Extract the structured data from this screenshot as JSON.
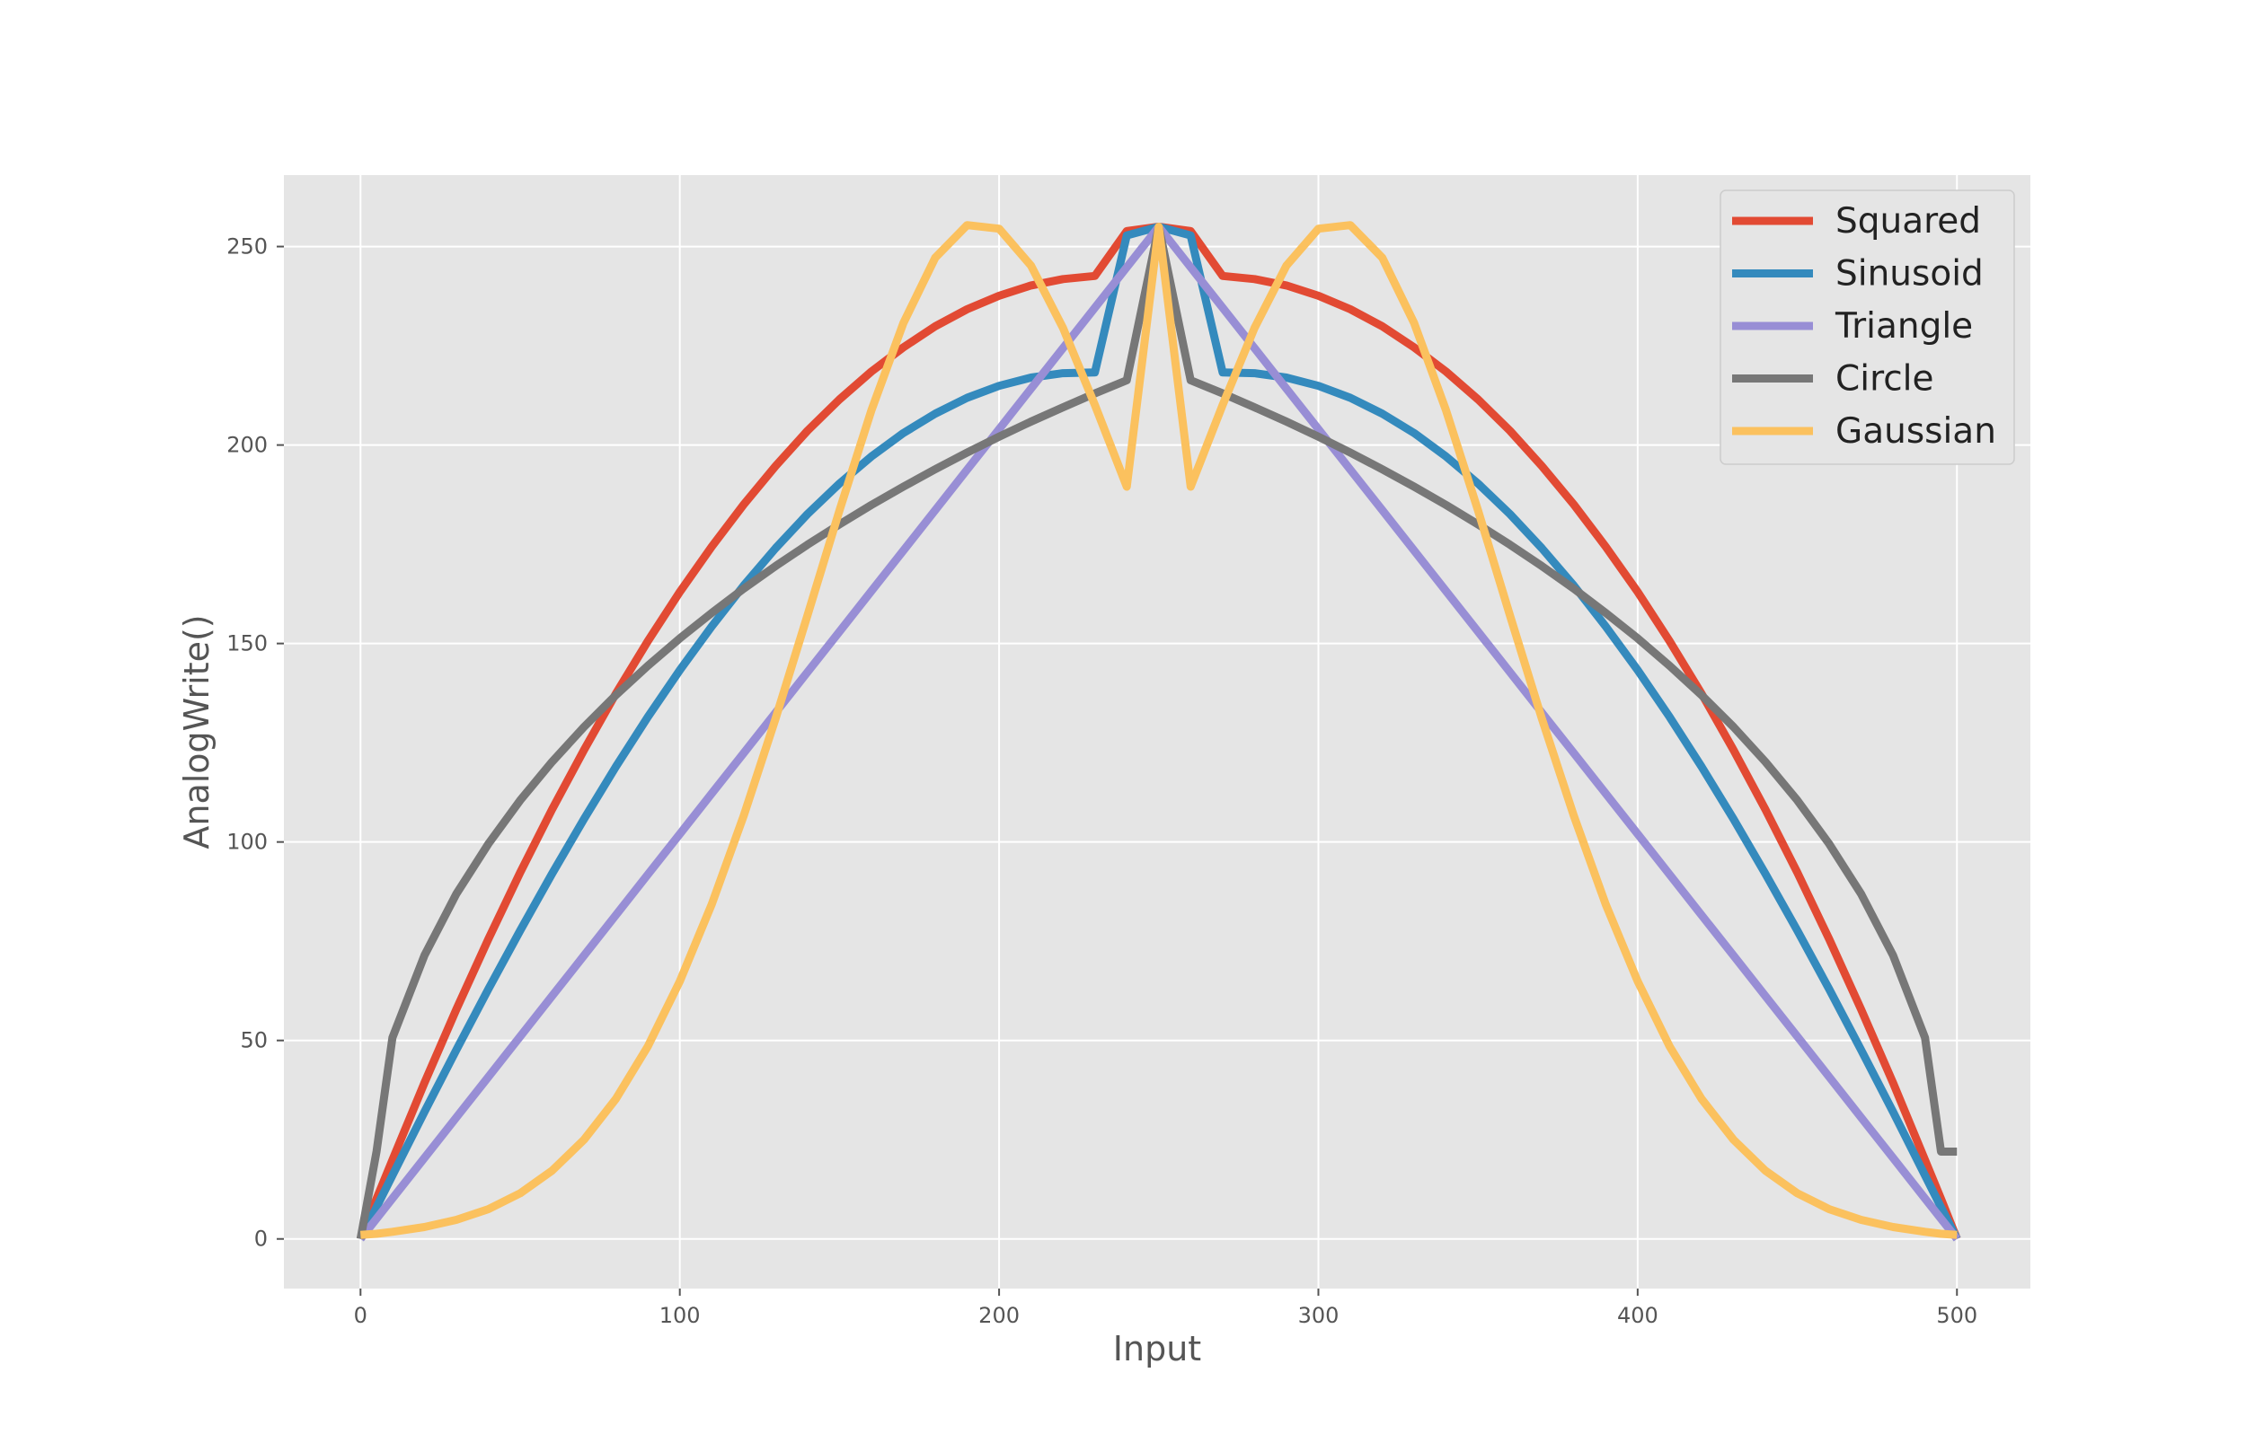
{
  "chart_data": {
    "type": "line",
    "title": "",
    "xlabel": "Input",
    "ylabel": "AnalogWrite()",
    "xlim": [
      -24,
      523
    ],
    "ylim": [
      -12.5,
      268
    ],
    "x_ticks": [
      0,
      100,
      200,
      300,
      400,
      500
    ],
    "y_ticks": [
      0,
      50,
      100,
      150,
      200,
      250
    ],
    "x_tick_labels": [
      "0",
      "100",
      "200",
      "300",
      "400",
      "500"
    ],
    "y_tick_labels": [
      "0",
      "50",
      "100",
      "150",
      "200",
      "250"
    ],
    "grid": true,
    "legend_position": "top-right",
    "colors": {
      "background": "#e5e5e5",
      "grid": "#ffffff",
      "tick_text": "#555555"
    },
    "x": [
      0,
      5,
      10,
      20,
      30,
      40,
      50,
      60,
      70,
      80,
      90,
      100,
      110,
      120,
      130,
      140,
      150,
      160,
      170,
      180,
      190,
      200,
      210,
      220,
      230,
      240,
      250,
      260,
      270,
      280,
      290,
      300,
      310,
      320,
      330,
      340,
      350,
      360,
      370,
      380,
      390,
      400,
      410,
      420,
      430,
      440,
      450,
      460,
      470,
      480,
      490,
      495,
      500
    ],
    "series": [
      {
        "name": "Squared",
        "color": "#e24a33",
        "values": [
          0,
          10.1,
          19.9,
          39.3,
          57.8,
          75.5,
          92.3,
          108.2,
          123.2,
          137.4,
          150.6,
          163,
          174.4,
          185,
          194.7,
          203.6,
          211.5,
          218.5,
          224.6,
          229.9,
          234.2,
          237.6,
          240.2,
          241.8,
          242.6,
          253.9,
          255,
          253.9,
          242.6,
          241.8,
          240.2,
          237.6,
          234.2,
          229.9,
          224.6,
          218.5,
          211.5,
          203.6,
          194.7,
          185,
          174.4,
          163,
          150.6,
          137.4,
          123.2,
          108.2,
          92.3,
          75.5,
          57.8,
          39.3,
          19.9,
          10.1,
          0
        ]
      },
      {
        "name": "Sinusoid",
        "color": "#348abd",
        "values": [
          0,
          8,
          16,
          32,
          47.6,
          62.9,
          77.7,
          92,
          105.8,
          119,
          131.5,
          143.3,
          154.3,
          164.6,
          174,
          182.6,
          190.3,
          197.1,
          203,
          207.9,
          211.9,
          214.9,
          217,
          218.1,
          218.3,
          252.8,
          255,
          252.8,
          218.3,
          218.1,
          217,
          214.9,
          211.9,
          207.9,
          203,
          197.1,
          190.3,
          182.6,
          174,
          164.6,
          154.3,
          143.3,
          131.5,
          119,
          105.8,
          92,
          77.7,
          62.9,
          47.6,
          32,
          16,
          8,
          0
        ]
      },
      {
        "name": "Triangle",
        "color": "#988ed5",
        "values": [
          0,
          5.1,
          10.2,
          20.4,
          30.6,
          40.8,
          51,
          61.2,
          71.4,
          81.6,
          91.8,
          102,
          112.2,
          122.4,
          132.6,
          142.8,
          153,
          163.2,
          173.4,
          183.6,
          193.8,
          204,
          214.2,
          224.4,
          234.6,
          244.8,
          255,
          244.8,
          234.6,
          224.4,
          214.2,
          204,
          193.8,
          183.6,
          173.4,
          163.2,
          153,
          142.8,
          132.6,
          122.4,
          112.2,
          102,
          91.8,
          81.6,
          71.4,
          61.2,
          51,
          40.8,
          30.6,
          20.4,
          10.2,
          5.1,
          0
        ]
      },
      {
        "name": "Circle",
        "color": "#777777",
        "values": [
          0,
          22,
          50.7,
          71.4,
          86.9,
          99.5,
          110.5,
          120.2,
          129,
          137,
          144.4,
          151.3,
          157.7,
          163.8,
          169.5,
          174.9,
          180,
          184.9,
          189.5,
          193.9,
          198.1,
          202.1,
          205.9,
          209.5,
          213,
          216.3,
          255,
          216.3,
          213,
          209.5,
          205.9,
          202.1,
          198.1,
          193.9,
          189.5,
          184.9,
          180,
          174.9,
          169.5,
          163.8,
          157.7,
          151.3,
          144.4,
          137,
          129,
          120.2,
          110.5,
          99.5,
          86.9,
          71.4,
          50.7,
          22,
          22
        ]
      },
      {
        "name": "Gaussian",
        "color": "#fbc15e",
        "values": [
          1,
          1.3,
          1.8,
          3,
          4.8,
          7.5,
          11.5,
          17.2,
          25,
          35.3,
          48.5,
          64.9,
          84.3,
          106.6,
          131.1,
          157.1,
          183.5,
          208.7,
          230.7,
          247.2,
          255.4,
          254.5,
          245.2,
          229.5,
          210.1,
          189.5,
          255,
          189.5,
          210.1,
          229.5,
          245.2,
          254.5,
          255.4,
          247.2,
          230.7,
          208.7,
          183.5,
          157.1,
          131.1,
          106.6,
          84.3,
          64.9,
          48.5,
          35.3,
          25,
          17.2,
          11.5,
          7.5,
          4.8,
          3,
          1.8,
          1.3,
          1
        ]
      }
    ]
  }
}
